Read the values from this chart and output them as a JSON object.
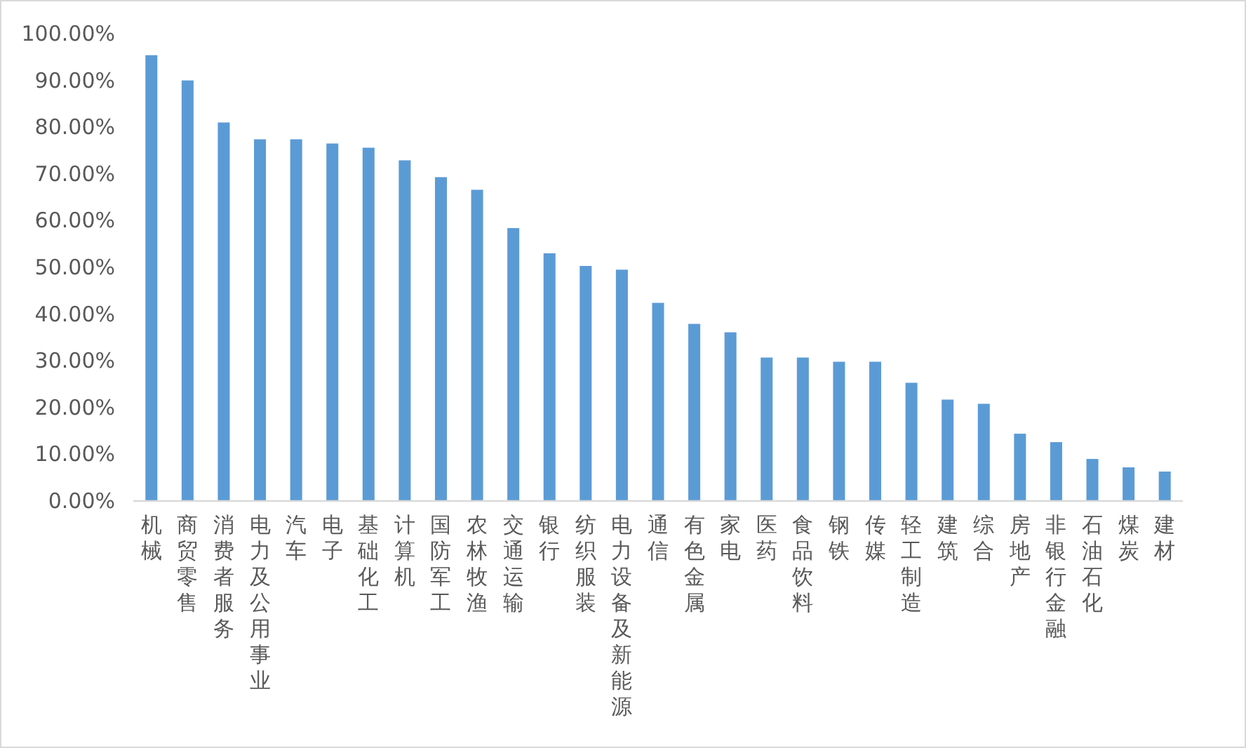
{
  "chart_data": {
    "type": "bar",
    "categories": [
      "机械",
      "商贸零售",
      "消费者服务",
      "电力及公用事业",
      "汽车",
      "电子",
      "基础化工",
      "计算机",
      "国防军工",
      "农林牧渔",
      "交通运输",
      "银行",
      "纺织服装",
      "电力设备及新能源",
      "通信",
      "有色金属",
      "家电",
      "医药",
      "食品饮料",
      "钢铁",
      "传媒",
      "轻工制造",
      "建筑",
      "综合",
      "房地产",
      "非银行金融",
      "石油石化",
      "煤炭",
      "建材"
    ],
    "values": [
      95.4,
      90.0,
      81.0,
      77.4,
      77.4,
      76.5,
      75.6,
      72.9,
      69.3,
      66.6,
      58.4,
      53.0,
      50.3,
      49.5,
      42.4,
      37.9,
      36.1,
      30.7,
      30.7,
      29.8,
      29.8,
      25.3,
      21.7,
      20.8,
      14.4,
      12.6,
      9.0,
      7.2,
      6.3
    ],
    "color": "#5b9bd5",
    "ylim": [
      0,
      100
    ],
    "yticks": [
      {
        "value": 0,
        "label": "0.00%"
      },
      {
        "value": 10,
        "label": "10.00%"
      },
      {
        "value": 20,
        "label": "20.00%"
      },
      {
        "value": 30,
        "label": "30.00%"
      },
      {
        "value": 40,
        "label": "40.00%"
      },
      {
        "value": 50,
        "label": "50.00%"
      },
      {
        "value": 60,
        "label": "60.00%"
      },
      {
        "value": 70,
        "label": "70.00%"
      },
      {
        "value": 80,
        "label": "80.00%"
      },
      {
        "value": 90,
        "label": "90.00%"
      },
      {
        "value": 100,
        "label": "100.00%"
      }
    ],
    "grid": false
  }
}
